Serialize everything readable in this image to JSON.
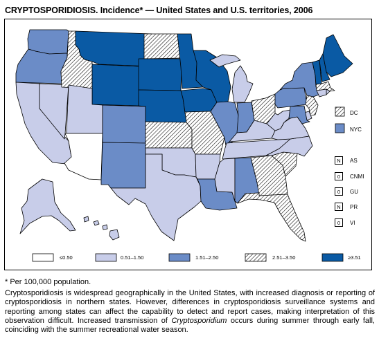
{
  "title": "CRYPTOSPORIDIOSIS. Incidence* — United States and U.S. territories, 2006",
  "colors": {
    "lt_0_50": "#ffffff",
    "0_51_1_50": "#c8cde9",
    "1_51_2_50": "#6b8cc7",
    "2_51_3_50": "hatch",
    "ge_3_51": "#0a5aa4",
    "border": "#000000"
  },
  "legend": {
    "items": [
      {
        "key": "lt_0_50",
        "label": "≤0.50"
      },
      {
        "key": "0_51_1_50",
        "label": "0.51–1.50"
      },
      {
        "key": "1_51_2_50",
        "label": "1.51–2.50"
      },
      {
        "key": "2_51_3_50",
        "label": "2.51–3.50"
      },
      {
        "key": "ge_3_51",
        "label": "≥3.51"
      }
    ]
  },
  "side_boxes": [
    {
      "label": "DC",
      "category": "2_51_3_50"
    },
    {
      "label": "NYC",
      "category": "1_51_2_50"
    }
  ],
  "territories": [
    {
      "label": "AS",
      "value": "N"
    },
    {
      "label": "CNMI",
      "value": "0"
    },
    {
      "label": "GU",
      "value": "0"
    },
    {
      "label": "PR",
      "value": "N"
    },
    {
      "label": "VI",
      "value": "0"
    }
  ],
  "states": [
    {
      "abbr": "WA",
      "category": "1_51_2_50"
    },
    {
      "abbr": "OR",
      "category": "1_51_2_50"
    },
    {
      "abbr": "CA",
      "category": "0_51_1_50"
    },
    {
      "abbr": "NV",
      "category": "0_51_1_50"
    },
    {
      "abbr": "ID",
      "category": "2_51_3_50"
    },
    {
      "abbr": "MT",
      "category": "ge_3_51"
    },
    {
      "abbr": "WY",
      "category": "ge_3_51"
    },
    {
      "abbr": "UT",
      "category": "0_51_1_50"
    },
    {
      "abbr": "AZ",
      "category": "lt_0_50"
    },
    {
      "abbr": "CO",
      "category": "1_51_2_50"
    },
    {
      "abbr": "NM",
      "category": "1_51_2_50"
    },
    {
      "abbr": "ND",
      "category": "2_51_3_50"
    },
    {
      "abbr": "SD",
      "category": "ge_3_51"
    },
    {
      "abbr": "NE",
      "category": "ge_3_51"
    },
    {
      "abbr": "KS",
      "category": "2_51_3_50"
    },
    {
      "abbr": "OK",
      "category": "0_51_1_50"
    },
    {
      "abbr": "TX",
      "category": "0_51_1_50"
    },
    {
      "abbr": "MN",
      "category": "ge_3_51"
    },
    {
      "abbr": "IA",
      "category": "ge_3_51"
    },
    {
      "abbr": "MO",
      "category": "2_51_3_50"
    },
    {
      "abbr": "AR",
      "category": "0_51_1_50"
    },
    {
      "abbr": "LA",
      "category": "1_51_2_50"
    },
    {
      "abbr": "WI",
      "category": "ge_3_51"
    },
    {
      "abbr": "IL",
      "category": "1_51_2_50"
    },
    {
      "abbr": "MI",
      "category": "0_51_1_50"
    },
    {
      "abbr": "IN",
      "category": "1_51_2_50"
    },
    {
      "abbr": "OH",
      "category": "2_51_3_50"
    },
    {
      "abbr": "KY",
      "category": "0_51_1_50"
    },
    {
      "abbr": "TN",
      "category": "0_51_1_50"
    },
    {
      "abbr": "MS",
      "category": "0_51_1_50"
    },
    {
      "abbr": "AL",
      "category": "1_51_2_50"
    },
    {
      "abbr": "GA",
      "category": "2_51_3_50"
    },
    {
      "abbr": "FL",
      "category": "2_51_3_50"
    },
    {
      "abbr": "SC",
      "category": "2_51_3_50"
    },
    {
      "abbr": "NC",
      "category": "0_51_1_50"
    },
    {
      "abbr": "VA",
      "category": "0_51_1_50"
    },
    {
      "abbr": "WV",
      "category": "0_51_1_50"
    },
    {
      "abbr": "PA",
      "category": "1_51_2_50"
    },
    {
      "abbr": "NY",
      "category": "1_51_2_50"
    },
    {
      "abbr": "VT",
      "category": "ge_3_51"
    },
    {
      "abbr": "NH",
      "category": "ge_3_51"
    },
    {
      "abbr": "ME",
      "category": "ge_3_51"
    },
    {
      "abbr": "MA",
      "category": "2_51_3_50"
    },
    {
      "abbr": "RI",
      "category": "0_51_1_50"
    },
    {
      "abbr": "CT",
      "category": "0_51_1_50"
    },
    {
      "abbr": "NJ",
      "category": "2_51_3_50"
    },
    {
      "abbr": "DE",
      "category": "0_51_1_50"
    },
    {
      "abbr": "MD",
      "category": "1_51_2_50"
    },
    {
      "abbr": "AK",
      "category": "0_51_1_50"
    },
    {
      "abbr": "HI",
      "category": "0_51_1_50"
    }
  ],
  "footnote": "* Per 100,000 population.",
  "description": {
    "part1": "Cryptosporidiosis is widespread geographically in the United States, with increased diagnosis or reporting of cryptosporidiosis in northern states. However, differences in cryptosporidiosis surveillance systems and reporting among states can affect the capability to detect and report cases, making interpretation of this observation difficult. Increased transmission of ",
    "italic": "Cryptosporidium",
    "part2": " occurs during summer through early fall, coinciding with the summer recreational water season."
  }
}
